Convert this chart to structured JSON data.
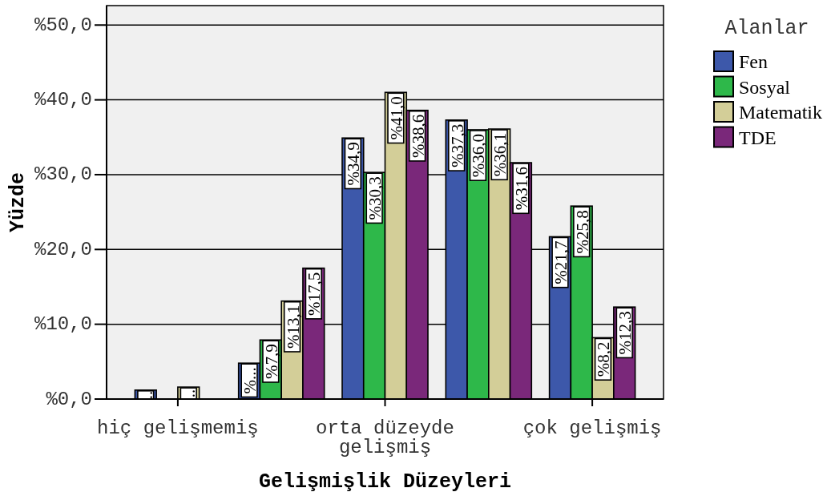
{
  "chart_data": {
    "type": "bar",
    "xlabel": "Gelişmişlik Düzeyleri",
    "ylabel": "Yüzde",
    "legend_title": "Alanlar",
    "categories": [
      "hiç gelişmemiş",
      null,
      "orta düzeyde gelişmiş",
      null,
      "çok gelişmiş"
    ],
    "series": [
      {
        "name": "Fen",
        "color": "#3d58aa",
        "values": [
          1.2,
          4.8,
          34.9,
          37.3,
          21.7
        ],
        "value_labels": [
          "..",
          "%...",
          "%34,9",
          "%37,3",
          "%21,7"
        ]
      },
      {
        "name": "Sosyal",
        "color": "#2eb84a",
        "values": [
          0,
          7.9,
          30.3,
          36.0,
          25.8
        ],
        "value_labels": [
          null,
          "%7,9",
          "%30,3",
          "%36,0",
          "%25,8"
        ]
      },
      {
        "name": "Matematik",
        "color": "#d3ce98",
        "values": [
          1.6,
          13.1,
          41.0,
          36.1,
          8.2
        ],
        "value_labels": [
          "..",
          "%13,1",
          "%41,0",
          "%36,1",
          "%8,2"
        ]
      },
      {
        "name": "TDE",
        "color": "#7a287a",
        "values": [
          0,
          17.5,
          38.6,
          31.6,
          12.3
        ],
        "value_labels": [
          null,
          "%17,5",
          "%38,6",
          "%31,6",
          "%12,3"
        ]
      }
    ],
    "ylim": [
      0,
      52.6
    ],
    "yticks": [
      {
        "value": 0,
        "label": "%0,0"
      },
      {
        "value": 10,
        "label": "%10,0"
      },
      {
        "value": 20,
        "label": "%20,0"
      },
      {
        "value": 30,
        "label": "%30,0"
      },
      {
        "value": 40,
        "label": "%40,0"
      },
      {
        "value": 50,
        "label": "%50,0"
      }
    ],
    "grid": "y",
    "legend": "right"
  }
}
